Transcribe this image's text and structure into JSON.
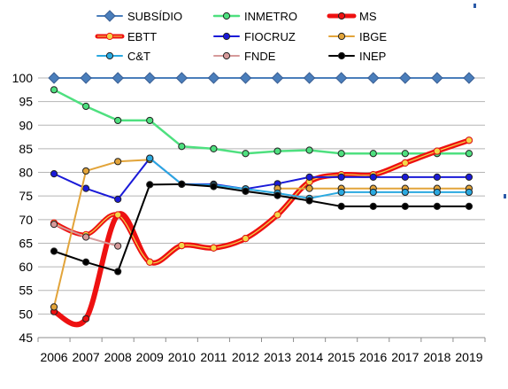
{
  "chart_data": {
    "type": "line",
    "title": "",
    "xlabel": "",
    "ylabel": "",
    "x": [
      2006,
      2007,
      2008,
      2009,
      2010,
      2011,
      2012,
      2013,
      2014,
      2015,
      2016,
      2017,
      2018,
      2019
    ],
    "ylim": [
      45,
      100
    ],
    "yticks": [
      45,
      50,
      55,
      60,
      65,
      70,
      75,
      80,
      85,
      90,
      95,
      100
    ],
    "grid": "horizontal",
    "legend": "top",
    "series": [
      {
        "name": "SUBSÍDIO",
        "color": "#4a7ebb",
        "marker": "diamond",
        "smooth": false,
        "width": 2,
        "values": [
          100,
          100,
          100,
          100,
          100,
          100,
          100,
          100,
          100,
          100,
          100,
          100,
          100,
          100
        ]
      },
      {
        "name": "INMETRO",
        "color": "#4ee07f",
        "marker": "circle",
        "smooth": false,
        "width": 2.5,
        "values": [
          97.5,
          94,
          91,
          91,
          85.5,
          85,
          84,
          84.5,
          84.7,
          84,
          84,
          84,
          84,
          84
        ]
      },
      {
        "name": "MS",
        "color": "#ee1111",
        "marker": "circle",
        "smooth": true,
        "width": 6,
        "values": [
          50.5,
          49,
          71,
          61,
          64.5,
          64,
          66,
          71,
          78,
          79.5,
          79.5,
          82,
          84.5,
          86.8
        ]
      },
      {
        "name": "EBTT",
        "color": "#ee1111",
        "marker": "circle",
        "smooth": true,
        "width": 5,
        "values": [
          69.3,
          66.8,
          71,
          61,
          64.5,
          64,
          66,
          71,
          78,
          79.5,
          79.5,
          82,
          84.5,
          86.8
        ]
      },
      {
        "name": "FIOCRUZ",
        "color": "#1a1ad8",
        "marker": "circle",
        "smooth": false,
        "width": 2,
        "values": [
          79.7,
          76.6,
          74.3,
          83,
          77.5,
          77.5,
          76.5,
          77.6,
          79,
          79,
          79,
          79,
          79,
          79
        ]
      },
      {
        "name": "IBGE",
        "color": "#e2a43a",
        "marker": "circle",
        "smooth": false,
        "width": 2,
        "values": [
          51.5,
          80.3,
          82.3,
          82.7,
          null,
          null,
          null,
          76.6,
          76.6,
          76.6,
          76.6,
          76.6,
          76.6,
          76.6
        ]
      },
      {
        "name": "C&T",
        "color": "#2aa9e0",
        "marker": "circle",
        "smooth": false,
        "width": 2,
        "values": [
          null,
          null,
          null,
          83,
          77.5,
          77.3,
          76.5,
          75.6,
          74.5,
          75.8,
          75.8,
          75.8,
          75.8,
          75.8
        ]
      },
      {
        "name": "FNDE",
        "color": "#d69a9a",
        "marker": "circle",
        "smooth": false,
        "width": 2,
        "values": [
          69,
          66.3,
          64.4,
          null,
          null,
          null,
          null,
          null,
          null,
          null,
          null,
          null,
          null,
          null
        ]
      },
      {
        "name": "INEP",
        "color": "#000000",
        "marker": "circle",
        "smooth": false,
        "width": 2,
        "values": [
          63.3,
          61,
          59,
          77.4,
          77.5,
          77,
          76,
          75.1,
          74,
          72.8,
          72.8,
          72.8,
          72.8,
          72.8
        ]
      }
    ]
  }
}
